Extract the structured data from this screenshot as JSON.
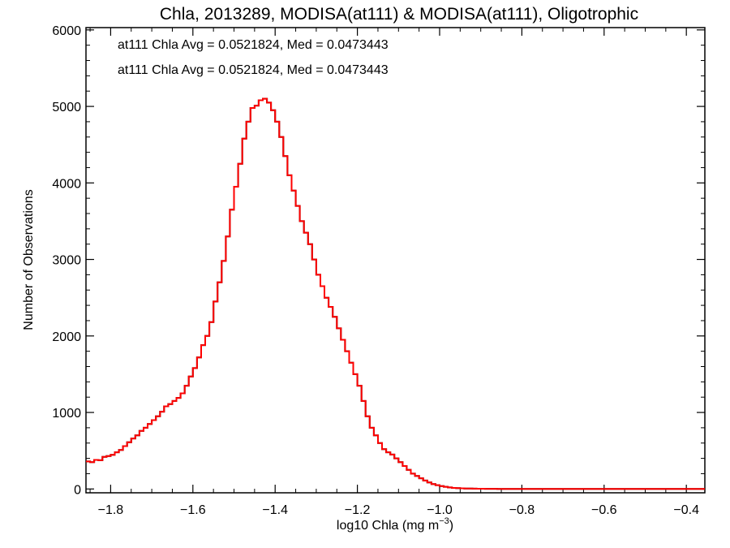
{
  "chart_data": {
    "type": "histogram",
    "title": "Chla, 2013289, MODISA(at111) & MODISA(at111), Oligotrophic",
    "xlabel_main": "log10 Chla (mg m",
    "xlabel_sup": "−3",
    "xlabel_close": ")",
    "ylabel": "Number of Observations",
    "xlim": [
      -1.86,
      -0.355
    ],
    "ylim": [
      -50,
      6030
    ],
    "xticks": [
      -1.8,
      -1.6,
      -1.4,
      -1.2,
      -1.0,
      -0.8,
      -0.6,
      -0.4
    ],
    "xtick_labels": [
      "−1.8",
      "−1.6",
      "−1.4",
      "−1.2",
      "−1.0",
      "−0.8",
      "−0.6",
      "−0.4"
    ],
    "yticks": [
      0,
      1000,
      2000,
      3000,
      4000,
      5000,
      6000
    ],
    "ytick_labels": [
      "0",
      "1000",
      "2000",
      "3000",
      "4000",
      "5000",
      "6000"
    ],
    "annotations": [
      {
        "text": "at111 Chla Avg = 0.0521824, Med = 0.0473443",
        "color": "#000000"
      },
      {
        "text": "at111 Chla Avg = 0.0521824, Med = 0.0473443",
        "color": "#ff0000"
      }
    ],
    "series": [
      {
        "color": "#000000"
      },
      {
        "color": "#ff0000"
      }
    ],
    "bin_width": 0.01,
    "bins_start": -1.86,
    "counts": [
      360,
      350,
      380,
      375,
      420,
      430,
      445,
      480,
      510,
      560,
      610,
      660,
      700,
      760,
      800,
      850,
      900,
      950,
      1010,
      1080,
      1110,
      1150,
      1190,
      1250,
      1350,
      1470,
      1580,
      1720,
      1880,
      2000,
      2180,
      2450,
      2700,
      2980,
      3300,
      3650,
      3950,
      4250,
      4580,
      4800,
      4980,
      5010,
      5080,
      5100,
      5050,
      4950,
      4800,
      4600,
      4350,
      4100,
      3900,
      3700,
      3500,
      3350,
      3200,
      3000,
      2800,
      2650,
      2500,
      2380,
      2250,
      2100,
      1950,
      1800,
      1650,
      1500,
      1350,
      1150,
      950,
      800,
      700,
      600,
      520,
      480,
      450,
      400,
      350,
      300,
      250,
      200,
      170,
      140,
      110,
      85,
      65,
      50,
      38,
      28,
      20,
      14,
      10,
      8,
      6,
      5,
      4,
      3,
      3,
      2,
      2,
      2,
      1,
      1,
      1,
      1,
      1,
      1,
      0,
      0,
      0,
      0,
      0,
      0,
      0,
      0,
      0,
      0,
      0,
      0,
      0,
      0,
      0,
      0,
      0,
      0,
      0,
      0,
      0,
      0,
      0,
      0,
      0,
      0,
      0,
      0,
      0,
      0,
      0,
      0,
      0,
      0,
      0,
      0,
      0,
      0,
      0,
      0,
      0,
      0,
      0,
      0,
      0,
      0,
      0
    ]
  }
}
